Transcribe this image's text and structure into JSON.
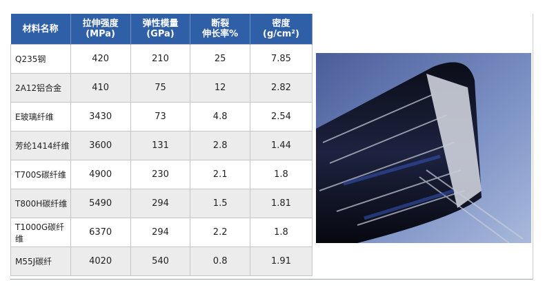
{
  "table": {
    "header": [
      [
        "材料名称"
      ],
      [
        "拉伸强度",
        "(MPa)"
      ],
      [
        "弹性模量",
        "(GPa)"
      ],
      [
        "断裂",
        "伸长率%"
      ],
      [
        "密度",
        "(g/cm²)"
      ]
    ],
    "rows": [
      [
        "Q235钢",
        "420",
        "210",
        "25",
        "7.85"
      ],
      [
        "2A12铝合金",
        "410",
        "75",
        "12",
        "2.82"
      ],
      [
        "E玻璃纤维",
        "3430",
        "73",
        "4.8",
        "2.54"
      ],
      [
        "芳纶1414纤维",
        "3600",
        "131",
        "2.8",
        "1.44"
      ],
      [
        "T700S碳纤维",
        "4900",
        "230",
        "2.1",
        "1.8"
      ],
      [
        "T800H碳纤维",
        "5490",
        "294",
        "1.5",
        "1.81"
      ],
      [
        "T1000G碳纤维",
        "6370",
        "294",
        "2.2",
        "1.8"
      ],
      [
        "M55J碳纤",
        "4020",
        "540",
        "0.8",
        "1.91"
      ]
    ]
  }
}
